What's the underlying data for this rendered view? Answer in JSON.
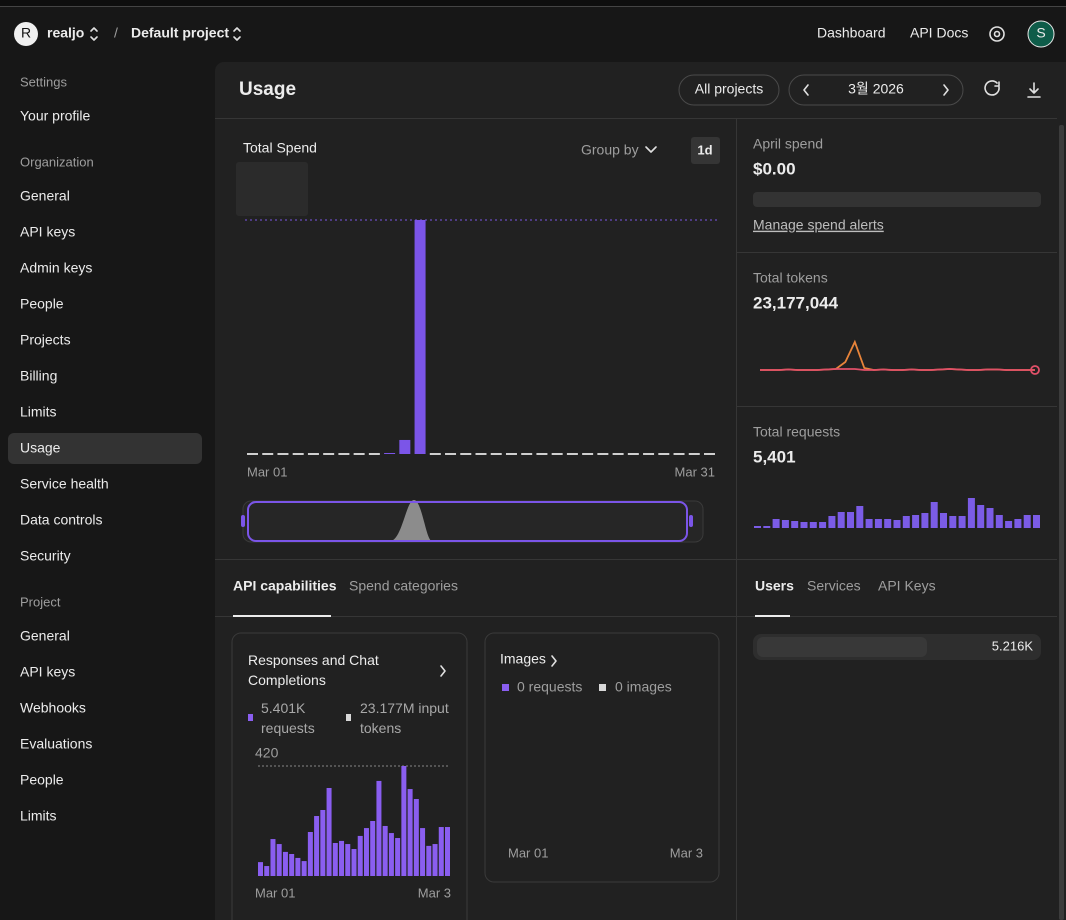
{
  "topbar": {
    "org_initial": "R",
    "org": "realjo",
    "separator": "/",
    "project": "Default project",
    "links": [
      "Dashboard",
      "API Docs"
    ],
    "avatar": "S"
  },
  "sidebar": {
    "sections": [
      {
        "heading": "Settings",
        "items": [
          "Your profile"
        ]
      },
      {
        "heading": "Organization",
        "items": [
          "General",
          "API keys",
          "Admin keys",
          "People",
          "Projects",
          "Billing",
          "Limits",
          "Usage",
          "Service health",
          "Data controls",
          "Security"
        ]
      },
      {
        "heading": "Project",
        "items": [
          "General",
          "API keys",
          "Webhooks",
          "Evaluations",
          "People",
          "Limits"
        ]
      }
    ]
  },
  "header": {
    "title": "Usage",
    "filter": "All projects",
    "month": "3월 2026"
  },
  "spend_chart": {
    "type": "bar",
    "title": "Total Spend",
    "group_by": "Group by",
    "interval": "1d",
    "x_start": "Mar 01",
    "x_end": "Mar 31",
    "color": "#7b55e8",
    "zero_color": "#cfcfcf",
    "values": [
      0,
      0,
      0,
      0,
      0,
      0,
      0,
      0,
      0,
      0.4,
      6,
      100,
      0,
      0,
      0,
      0,
      0,
      0,
      0,
      0,
      0,
      0,
      0,
      0,
      0,
      0,
      0,
      0,
      0,
      0,
      0
    ]
  },
  "april_spend": {
    "label": "April spend",
    "value": "$0.00",
    "link": "Manage spend alerts"
  },
  "total_tokens": {
    "type": "line",
    "label": "Total tokens",
    "value": "23,177,044",
    "series": [
      {
        "color": "#e05068",
        "values": [
          2,
          2,
          2,
          2.5,
          2,
          2,
          2,
          2.5,
          3,
          3,
          3,
          2,
          2,
          2.5,
          2,
          2,
          2.5,
          2,
          2,
          2.5,
          3,
          2.5,
          2,
          2,
          2.5,
          2.5,
          2,
          2,
          2,
          2
        ]
      },
      {
        "color": "#e8843a",
        "values": [
          2,
          2,
          2,
          2.5,
          2,
          2,
          2,
          2.5,
          3,
          10,
          30,
          4,
          2,
          2.5,
          2,
          2,
          2.5,
          2,
          2,
          2.5,
          3,
          2.5,
          2,
          2,
          2.5,
          2.5,
          2,
          2,
          2,
          2
        ]
      }
    ]
  },
  "total_requests": {
    "type": "bar",
    "label": "Total requests",
    "value": "5,401",
    "color": "#7b5ce6",
    "values": [
      2,
      2,
      9,
      8,
      7,
      6,
      6,
      6,
      12,
      16,
      16,
      22,
      9,
      9,
      9,
      8,
      12,
      13,
      15,
      26,
      15,
      12,
      12,
      30,
      23,
      20,
      13,
      7,
      9,
      13,
      13
    ]
  },
  "capability_tabs": [
    "API capabilities",
    "Spend categories"
  ],
  "user_tabs": [
    "Users",
    "Services",
    "API Keys"
  ],
  "responses_card": {
    "type": "bar",
    "title": "Responses and Chat Completions",
    "legend": [
      "5.401K requests",
      "23.177M input tokens"
    ],
    "color": "#8a5ef0",
    "ylim": [
      0,
      420
    ],
    "yticks": [
      420
    ],
    "x_start": "Mar 01",
    "x_end": "Mar 3",
    "values": [
      53,
      38,
      141,
      122,
      92,
      84,
      69,
      57,
      168,
      229,
      252,
      336,
      126,
      134,
      122,
      103,
      153,
      183,
      210,
      363,
      191,
      164,
      145,
      420,
      332,
      294,
      183,
      115,
      122,
      187,
      187
    ]
  },
  "images_card": {
    "title": "Images",
    "legend": [
      "0 requests",
      "0 images"
    ],
    "x_start": "Mar 01",
    "x_end": "Mar 3"
  },
  "users": {
    "value_label": "5.216K"
  }
}
